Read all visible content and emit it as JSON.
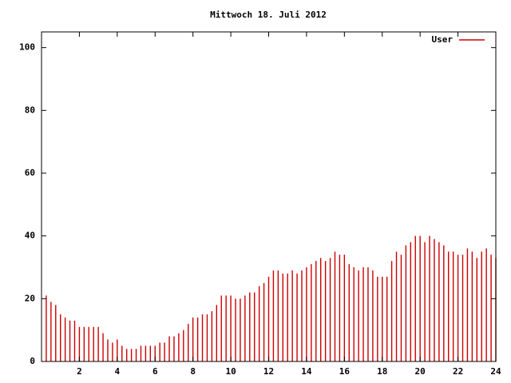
{
  "chart_data": {
    "type": "impulses",
    "title": "Mittwoch 18. Juli 2012",
    "x": [
      0.25,
      0.5,
      0.75,
      1,
      1.25,
      1.5,
      1.75,
      2,
      2.25,
      2.5,
      2.75,
      3,
      3.25,
      3.5,
      3.75,
      4,
      4.25,
      4.5,
      4.75,
      5,
      5.25,
      5.5,
      5.75,
      6,
      6.25,
      6.5,
      6.75,
      7,
      7.25,
      7.5,
      7.75,
      8,
      8.25,
      8.5,
      8.75,
      9,
      9.25,
      9.5,
      9.75,
      10,
      10.25,
      10.5,
      10.75,
      11,
      11.25,
      11.5,
      11.75,
      12,
      12.25,
      12.5,
      12.75,
      13,
      13.25,
      13.5,
      13.75,
      14,
      14.25,
      14.5,
      14.75,
      15,
      15.25,
      15.5,
      15.75,
      16,
      16.25,
      16.5,
      16.75,
      17,
      17.25,
      17.5,
      17.75,
      18,
      18.25,
      18.5,
      18.75,
      19,
      19.25,
      19.5,
      19.75,
      20,
      20.25,
      20.5,
      20.75,
      21,
      21.25,
      21.5,
      21.75,
      22,
      22.25,
      22.5,
      22.75,
      23,
      23.25,
      23.5,
      23.75,
      24
    ],
    "series": [
      {
        "name": "User",
        "color": "#cc0000",
        "values": [
          21,
          19,
          18,
          15,
          14,
          13,
          13,
          11,
          11,
          11,
          11,
          11,
          9,
          7,
          6,
          7,
          5,
          4,
          4,
          4,
          5,
          5,
          5,
          5,
          6,
          6,
          8,
          8,
          9,
          10,
          12,
          14,
          14,
          15,
          15,
          16,
          18,
          21,
          21,
          21,
          20,
          20,
          21,
          22,
          22,
          24,
          25,
          27,
          29,
          29,
          28,
          28,
          29,
          28,
          29,
          30,
          31,
          32,
          33,
          32,
          33,
          35,
          34,
          34,
          31,
          30,
          29,
          30,
          30,
          29,
          27,
          27,
          27,
          32,
          35,
          34,
          37,
          38,
          40,
          40,
          38,
          40,
          39,
          38,
          37,
          35,
          35,
          34,
          34,
          36,
          35,
          33,
          35,
          36,
          34,
          33
        ]
      }
    ],
    "xlim": [
      0,
      24
    ],
    "xticks": [
      2,
      4,
      6,
      8,
      10,
      12,
      14,
      16,
      18,
      20,
      22,
      24
    ],
    "ylim": [
      0,
      105
    ],
    "yticks": [
      0,
      20,
      40,
      60,
      80,
      100
    ],
    "legend": "top-right"
  }
}
